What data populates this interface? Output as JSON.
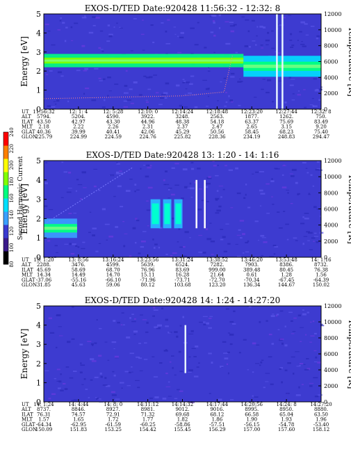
{
  "colorbar": {
    "title": "Second Harmonic Current",
    "ticks": [
      "80",
      "100",
      "120",
      "140",
      "160",
      "180",
      "200",
      "220",
      "240"
    ],
    "colors": [
      "#000000",
      "#3a1a8a",
      "#3a3ad0",
      "#3aa0ff",
      "#00e0ff",
      "#00ff80",
      "#80ff00",
      "#ffff00",
      "#ff8000",
      "#ff0000"
    ]
  },
  "row_labels": [
    "UT",
    "ALT",
    "ILAT",
    "MLT",
    "GLAT",
    "GLON"
  ],
  "chart_data": [
    {
      "type": "heatmap",
      "title": "EXOS-D/TED   Date:920428   11:56:32 - 12:32: 8",
      "ylabel": "Energy [eV]",
      "y2label": "Temperature [K]",
      "yticks": [
        "0",
        "1",
        "2",
        "3",
        "4",
        "5"
      ],
      "y2ticks": [
        "0",
        "2000",
        "4000",
        "6000",
        "8000",
        "10000",
        "12000"
      ],
      "ylim": [
        0,
        5
      ],
      "y2lim": [
        0,
        12000
      ],
      "columns": [
        [
          "11:56:32",
          "5794.",
          "43.50",
          "2.18",
          "40.36",
          "225.79"
        ],
        [
          "12: 1: 4",
          "5204.",
          "42.97",
          "2.22",
          "39.99",
          "224.99"
        ],
        [
          "12: 5:28",
          "4590.",
          "43.30",
          "2.26",
          "40.41",
          "224.59"
        ],
        [
          "12:10: 0",
          "3922.",
          "44.96",
          "2.31",
          "42.06",
          "224.76"
        ],
        [
          "12:14:24",
          "3248.",
          "48.38",
          "2.37",
          "45.29",
          "225.82"
        ],
        [
          "12:18:48",
          "2563.",
          "54.18",
          "2.47",
          "50.56",
          "228.36"
        ],
        [
          "12:23:20",
          "1877.",
          "63.37",
          "2.65",
          "58.45",
          "234.19"
        ],
        [
          "12:27:44",
          "1262.",
          "75.69",
          "3.15",
          "68.23",
          "248.83"
        ],
        [
          "12:32: 8",
          "750.",
          "83.49",
          "9.20",
          "75.40",
          "294.47"
        ]
      ],
      "bands": [
        {
          "t0": 0.0,
          "t1": 0.72,
          "e0": 2.2,
          "e1": 2.9,
          "level": 0.62
        },
        {
          "t0": 0.72,
          "t1": 1.0,
          "e0": 1.7,
          "e1": 2.8,
          "level": 0.58
        }
      ],
      "spikes": [
        0.84,
        0.86
      ]
    },
    {
      "type": "heatmap",
      "title": "EXOS-D/TED   Date:920428   13: 1:20 - 14: 1:16",
      "ylabel": "Energy [eV]",
      "y2label": "Temperature [K]",
      "yticks": [
        "0",
        "1",
        "2",
        "3",
        "4",
        "5"
      ],
      "y2ticks": [
        "0",
        "2000",
        "4000",
        "6000",
        "8000",
        "10000",
        "12000"
      ],
      "ylim": [
        0,
        5
      ],
      "y2lim": [
        0,
        12000
      ],
      "columns": [
        [
          "13: 1:20",
          "2288.",
          "45.69",
          "14.34",
          "-37.06",
          "31.85"
        ],
        [
          "13: 8:56",
          "3476.",
          "58.69",
          "14.49",
          "-55.16",
          "45.63"
        ],
        [
          "13:16:24",
          "4599.",
          "68.70",
          "14.70",
          "-66.10",
          "59.06"
        ],
        [
          "13:23:56",
          "5639.",
          "76.96",
          "15.11",
          "-71.96",
          "80.12"
        ],
        [
          "13:31:24",
          "6524.",
          "83.69",
          "16.28",
          "-73.71",
          "103.68"
        ],
        [
          "13:38:52",
          "7282.",
          "999.00",
          "21.64",
          "-72.70",
          "123.20"
        ],
        [
          "13:46:20",
          "7903.",
          "389.48",
          "0.61",
          "-70.34",
          "136.34"
        ],
        [
          "13:53:48",
          "8386.",
          "80.45",
          "1.28",
          "-67.45",
          "144.67"
        ],
        [
          "14: 1:16",
          "8732.",
          "76.38",
          "1.56",
          "-64.39",
          "150.02"
        ]
      ],
      "bands": [
        {
          "t0": 0.0,
          "t1": 0.12,
          "e0": 1.0,
          "e1": 2.0,
          "level": 0.5
        }
      ],
      "spikes": [
        0.55,
        0.58
      ]
    },
    {
      "type": "heatmap",
      "title": "EXOS-D/TED   Date:920428   14: 1:24 - 14:27:20",
      "ylabel": "Energy [eV]",
      "y2label": "Temperature [K]",
      "yticks": [
        "0",
        "1",
        "2",
        "3",
        "4",
        "5"
      ],
      "y2ticks": [
        "0",
        "2000",
        "4000",
        "6000",
        "8000",
        "10000",
        "12000"
      ],
      "ylim": [
        0,
        5
      ],
      "y2lim": [
        0,
        12000
      ],
      "columns": [
        [
          "14: 1:24",
          "8737.",
          "76.31",
          "1.57",
          "-64.34",
          "150.09"
        ],
        [
          "14: 4:44",
          "8846.",
          "74.57",
          "1.65",
          "-62.95",
          "151.83"
        ],
        [
          "14: 8: 0",
          "8927.",
          "72.91",
          "1.72",
          "-61.59",
          "153.25"
        ],
        [
          "14:11:12",
          "8981.",
          "71.32",
          "1.77",
          "-60.25",
          "154.42"
        ],
        [
          "14:14:32",
          "9012.",
          "69.68",
          "1.82",
          "-58.86",
          "155.45"
        ],
        [
          "14:17:44",
          "9016.",
          "68.12",
          "1.86",
          "-57.51",
          "156.29"
        ],
        [
          "14:20:56",
          "8995.",
          "66.58",
          "1.90",
          "-56.15",
          "157.00"
        ],
        [
          "14:24: 8",
          "8950.",
          "65.04",
          "1.93",
          "-54.78",
          "157.60"
        ],
        [
          "14:27:20",
          "8880.",
          "63.50",
          "1.96",
          "-53.40",
          "158.12"
        ]
      ],
      "bands": [],
      "spikes": [
        0.51
      ]
    }
  ]
}
